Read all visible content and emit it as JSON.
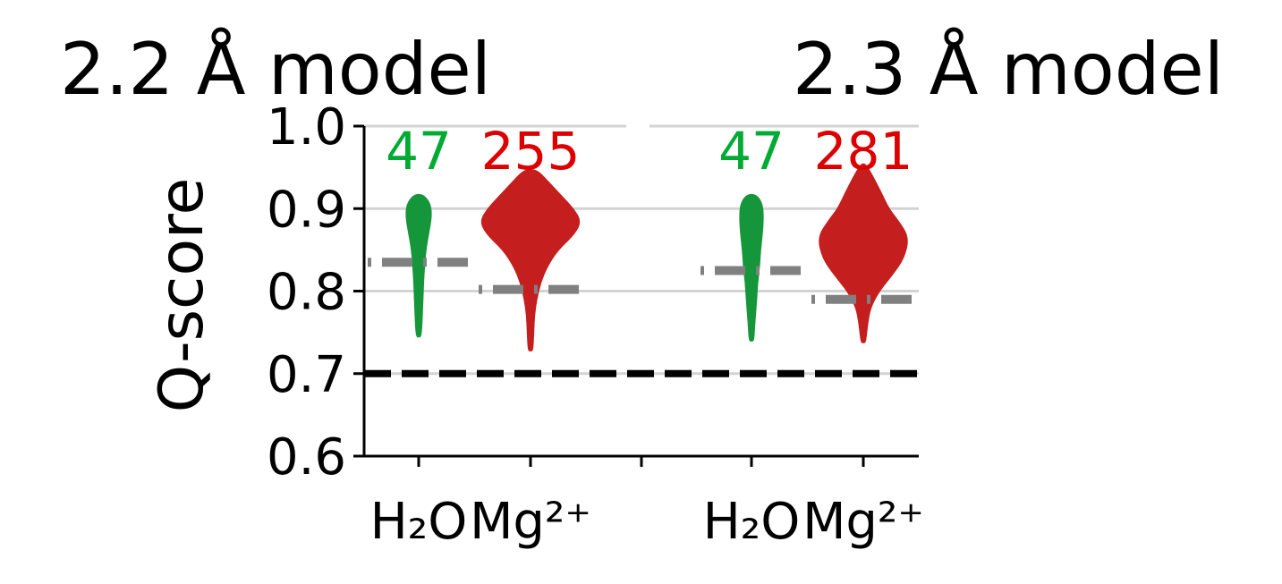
{
  "chart_data": {
    "type": "violin",
    "panel_titles": [
      "2.2 Å model",
      "2.3 Å model"
    ],
    "ylabel": "Q-score",
    "ylim": [
      0.6,
      1.0
    ],
    "yticks": [
      0.6,
      0.7,
      0.8,
      0.9,
      1.0
    ],
    "ytick_labels": [
      "0.6",
      "0.7",
      "0.8",
      "0.9",
      "1.0"
    ],
    "grid_y": [
      0.8,
      0.9,
      1.0
    ],
    "threshold": 0.7,
    "categories": [
      "H₂O",
      "Mg²⁺",
      "H₂O",
      "Mg²⁺"
    ],
    "colors": {
      "water": "#16963a",
      "mg": "#c41e1e",
      "count_water": "#00aa33",
      "count_mg": "#dd0000",
      "median_line": "#808080",
      "threshold_line": "#000000",
      "grid": "#d3d3d3"
    },
    "violins": [
      {
        "panel": 0,
        "category": "H₂O",
        "count": "47",
        "median": 0.835,
        "profile": [
          [
            0.745,
            0.1
          ],
          [
            0.76,
            0.15
          ],
          [
            0.79,
            0.2
          ],
          [
            0.82,
            0.25
          ],
          [
            0.85,
            0.35
          ],
          [
            0.87,
            0.5
          ],
          [
            0.89,
            0.65
          ],
          [
            0.905,
            0.6
          ],
          [
            0.915,
            0.3
          ]
        ]
      },
      {
        "panel": 0,
        "category": "Mg²⁺",
        "count": "255",
        "median": 0.802,
        "profile": [
          [
            0.728,
            0.1
          ],
          [
            0.75,
            0.15
          ],
          [
            0.77,
            0.18
          ],
          [
            0.79,
            0.3
          ],
          [
            0.81,
            0.5
          ],
          [
            0.83,
            0.85
          ],
          [
            0.85,
            1.4
          ],
          [
            0.87,
            2.3
          ],
          [
            0.885,
            2.6
          ],
          [
            0.9,
            2.2
          ],
          [
            0.915,
            1.6
          ],
          [
            0.93,
            1.0
          ],
          [
            0.945,
            0.4
          ]
        ]
      },
      {
        "panel": 1,
        "category": "H₂O",
        "count": "47",
        "median": 0.825,
        "profile": [
          [
            0.74,
            0.1
          ],
          [
            0.76,
            0.15
          ],
          [
            0.79,
            0.25
          ],
          [
            0.81,
            0.3
          ],
          [
            0.83,
            0.4
          ],
          [
            0.85,
            0.45
          ],
          [
            0.87,
            0.55
          ],
          [
            0.89,
            0.6
          ],
          [
            0.905,
            0.55
          ],
          [
            0.915,
            0.3
          ]
        ]
      },
      {
        "panel": 1,
        "category": "Mg²⁺",
        "count": "281",
        "median": 0.79,
        "profile": [
          [
            0.738,
            0.1
          ],
          [
            0.76,
            0.2
          ],
          [
            0.78,
            0.35
          ],
          [
            0.8,
            0.8
          ],
          [
            0.82,
            1.5
          ],
          [
            0.84,
            2.1
          ],
          [
            0.865,
            2.35
          ],
          [
            0.885,
            1.8
          ],
          [
            0.9,
            1.3
          ],
          [
            0.92,
            0.9
          ],
          [
            0.94,
            0.45
          ],
          [
            0.952,
            0.15
          ]
        ]
      }
    ]
  }
}
